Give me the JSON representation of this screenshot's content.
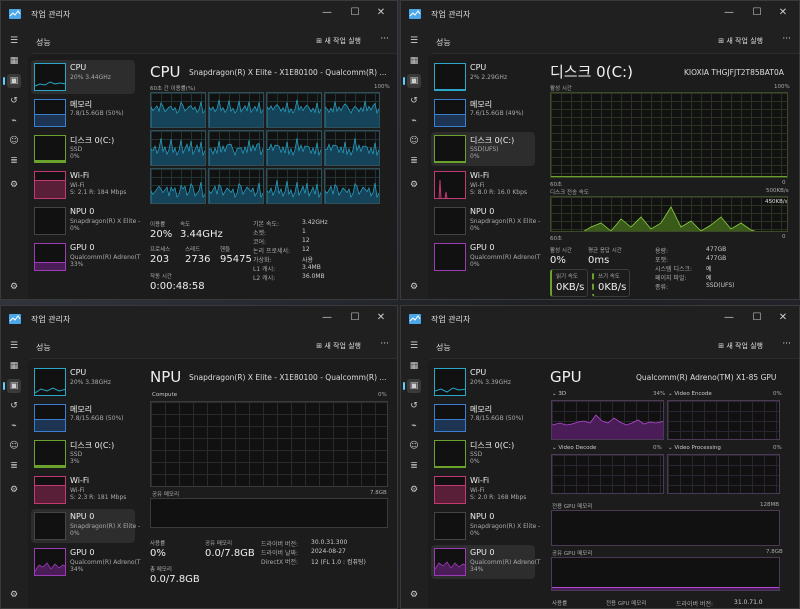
{
  "title": "작업 관리자",
  "perf_header": "성능",
  "run_task": "새 작업 실행",
  "more": "···",
  "sidebar": {
    "cpu": {
      "name": "CPU",
      "w0": "20% 3.44GHz",
      "w1": "2% 2.29GHz",
      "w2": "20% 3.38GHz",
      "w3": "20% 3.39GHz"
    },
    "mem": {
      "name": "메모리",
      "w0": "7.8/15.6GB (50%)",
      "w1": "7.6/15.6GB (49%)",
      "w2": "7.8/15.6GB (50%)",
      "w3": "7.8/15.6GB (50%)"
    },
    "disk": {
      "name": "디스크 0(C:)",
      "sub": "SSD",
      "sub_w1": "SSD(UFS)",
      "w0": "0%",
      "w1": "0%",
      "w2": "3%",
      "w3": "0%"
    },
    "wifi": {
      "name": "Wi-Fi",
      "sub": "Wi-Fi",
      "w0": "S: 2.1  R: 184 Mbps",
      "w1": "S: 8.0  R: 16.0 Kbps",
      "w2": "S: 2.3  R: 181 Mbps",
      "w3": "S: 2.0  R: 168 Mbps"
    },
    "npu": {
      "name": "NPU 0",
      "sub": "Snapdragon(R) X Elite -",
      "val": "0%"
    },
    "gpu": {
      "name": "GPU 0",
      "sub": "Qualcomm(R) Adreno(T",
      "w0": "33%",
      "w1": "0%",
      "w2": "34%",
      "w3": "34%"
    }
  },
  "cpu_panel": {
    "title": "CPU",
    "model": "Snapdragon(R) X Elite - X1E80100 - Qualcomm(R) ...",
    "graph_label": "60초 간 이용률(%)",
    "graph_max": "100%",
    "usage_lbl": "이용률",
    "usage": "20%",
    "speed_lbl": "속도",
    "speed": "3.44GHz",
    "proc_lbl": "프로세스",
    "proc": "203",
    "thread_lbl": "스레드",
    "thread": "2736",
    "handle_lbl": "핸들",
    "handle": "95475",
    "uptime_lbl": "작동 시간",
    "uptime": "0:00:48:58",
    "specs": [
      {
        "k": "기본 속도:",
        "v": "3.42GHz"
      },
      {
        "k": "소켓:",
        "v": "1"
      },
      {
        "k": "코어:",
        "v": "12"
      },
      {
        "k": "논리 프로세서:",
        "v": "12"
      },
      {
        "k": "가상화:",
        "v": "사용"
      },
      {
        "k": "L1 캐시:",
        "v": "3.4MB"
      },
      {
        "k": "L2 캐시:",
        "v": "36.0MB"
      }
    ]
  },
  "disk_panel": {
    "title": "디스크 0(C:)",
    "model": "KIOXIA THGJFJT2T85BAT0A",
    "active_lbl": "활성 시간",
    "active_max": "100%",
    "sec60": "60초",
    "zero": "0",
    "xfer_lbl": "디스크 전송 속도",
    "xfer_max": "500KB/s",
    "xfer_inner": "450KB/s",
    "active_time_lbl": "활성 시간",
    "active_time": "0%",
    "resp_lbl": "평균 응답 시간",
    "resp": "0ms",
    "read_lbl": "읽기 속도",
    "read": "0KB/s",
    "write_lbl": "쓰기 속도",
    "write": "0KB/s",
    "specs": [
      {
        "k": "용량:",
        "v": "477GB"
      },
      {
        "k": "포맷:",
        "v": "477GB"
      },
      {
        "k": "시스템 디스크:",
        "v": "예"
      },
      {
        "k": "페이지 파일:",
        "v": "예"
      },
      {
        "k": "종류:",
        "v": "SSD(UFS)"
      }
    ]
  },
  "npu_panel": {
    "title": "NPU",
    "model": "Snapdragon(R) X Elite - X1E80100 - Qualcomm(R) ...",
    "compute_lbl": "Compute",
    "compute_pct": "0%",
    "shared_lbl": "공유 메모리",
    "shared_max": "7.8GB",
    "usage_lbl": "사용률",
    "usage": "0%",
    "shmem_lbl": "공유 메모리",
    "shmem": "0.0/7.8GB",
    "total_lbl": "총 메모리",
    "total": "0.0/7.8GB",
    "specs": [
      {
        "k": "드라이버 버전:",
        "v": "30.0.31.300"
      },
      {
        "k": "드라이버 날짜:",
        "v": "2024-08-27"
      },
      {
        "k": "DirectX 버전:",
        "v": "12 (FL 1.0 : 컴퓨팅)"
      }
    ]
  },
  "gpu_panel": {
    "title": "GPU",
    "model": "Qualcomm(R) Adreno(TM) X1-85 GPU",
    "engines": [
      {
        "name": "3D",
        "pct": "34%"
      },
      {
        "name": "Video Encode",
        "pct": "0%"
      },
      {
        "name": "Video Decode",
        "pct": "0%"
      },
      {
        "name": "Video Processing",
        "pct": "0%"
      }
    ],
    "dedicated_lbl": "전용 GPU 메모리",
    "dedicated_max": "128MB",
    "shared_lbl": "공유 GPU 메모리",
    "shared_max": "7.8GB",
    "bottom": [
      {
        "k": "사용률"
      },
      {
        "k": "전용 GPU 메모리"
      },
      {
        "k": "드라이버 버전:",
        "v": "31.0.71.0"
      }
    ]
  },
  "colors": {
    "cpu": "#2aa6c8",
    "mem": "#3c7fd0",
    "disk": "#6aa22c",
    "wifi": "#c23a74",
    "gpu": "#9b3bb5"
  }
}
